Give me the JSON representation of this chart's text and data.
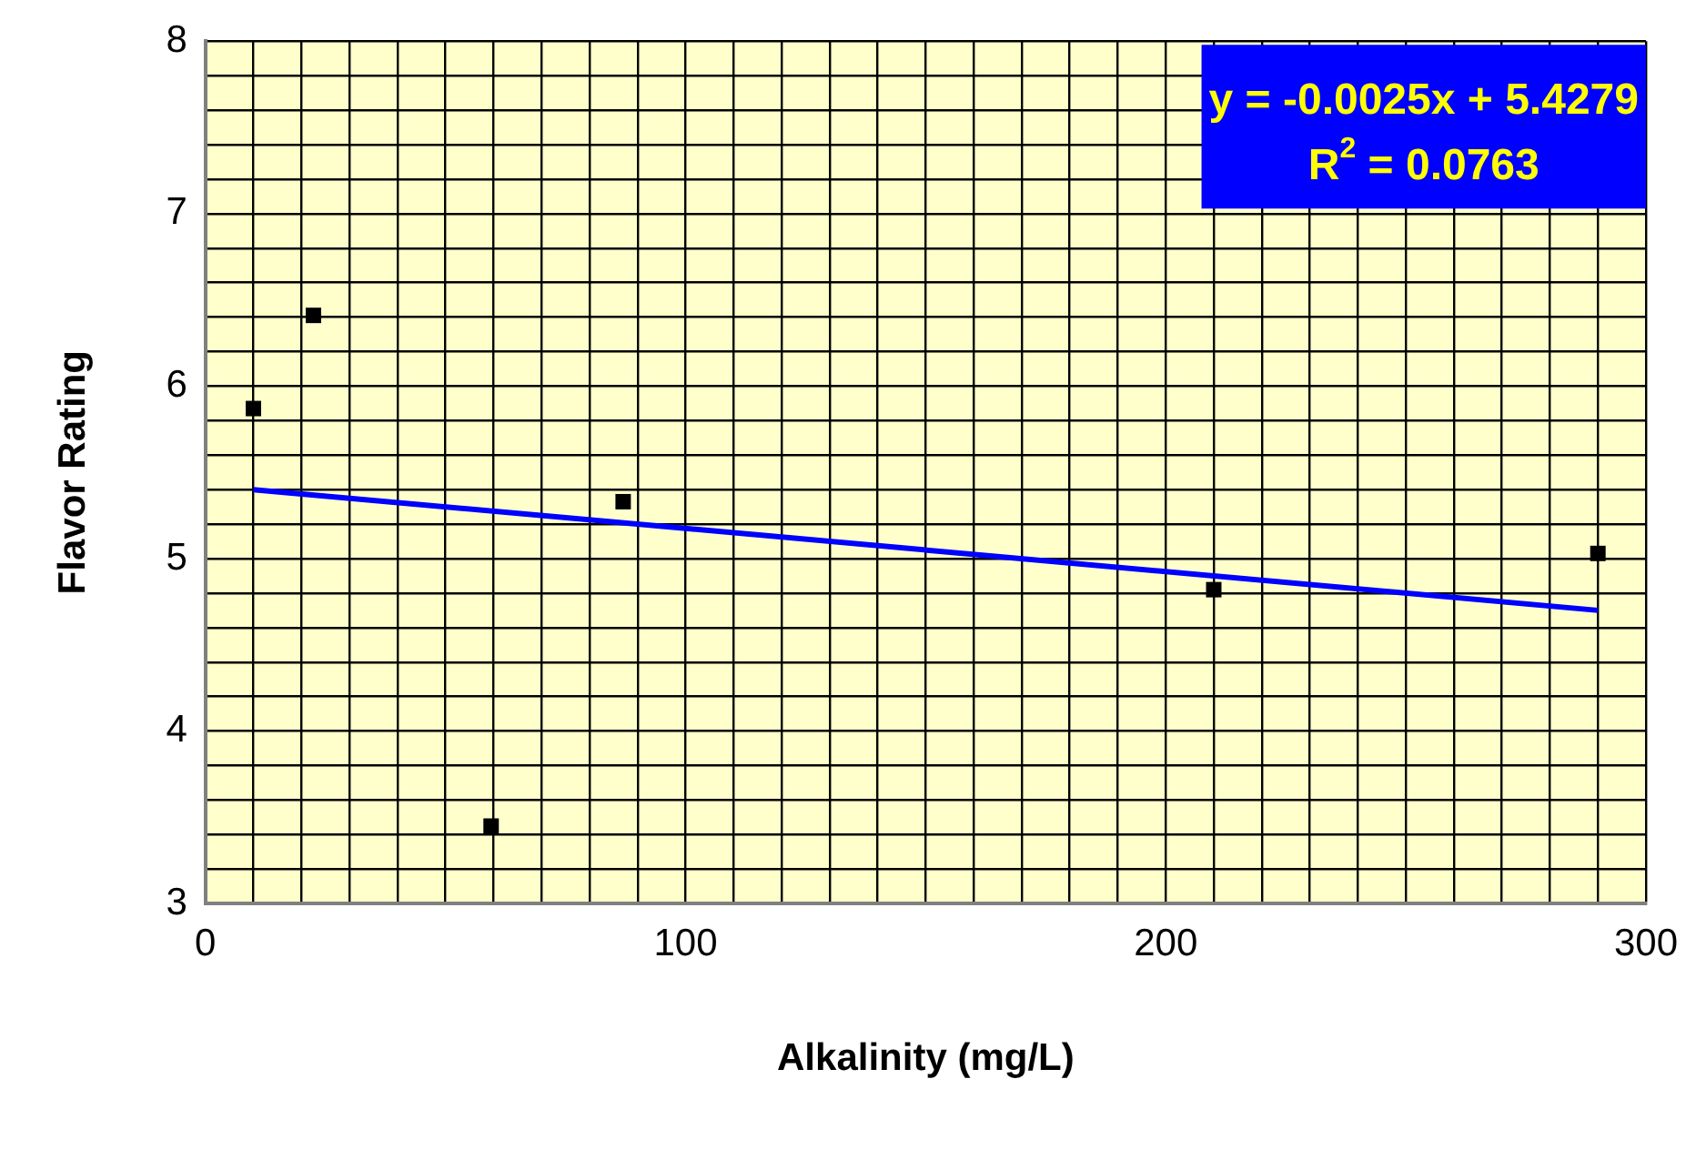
{
  "chart_data": {
    "type": "scatter",
    "xlabel": "Alkalinity (mg/L)",
    "ylabel": "Flavor Rating",
    "series": [
      {
        "type": "scatter",
        "color": "#000000",
        "marker": "square",
        "x": [
          10,
          22.5,
          59.5,
          87,
          210,
          290
        ],
        "values": [
          5.87,
          6.41,
          3.45,
          5.33,
          4.82,
          5.03
        ]
      },
      {
        "type": "line",
        "color": "#0000ff",
        "marker": "none",
        "line_style": "solid",
        "x": [
          10,
          290
        ],
        "values": [
          5.4,
          4.7
        ]
      }
    ],
    "annotations": [
      "y = -0.0025x + 5.4279",
      "R$^{2}$ = 0.0763"
    ],
    "xlim": [
      0,
      300
    ],
    "xticks": [
      0,
      {
        "value": 10,
        "label": null
      },
      {
        "value": 20,
        "label": null
      },
      {
        "value": 30,
        "label": null
      },
      {
        "value": 40,
        "label": null
      },
      {
        "value": 50,
        "label": null
      },
      {
        "value": 60,
        "label": null
      },
      {
        "value": 70,
        "label": null
      },
      {
        "value": 80,
        "label": null
      },
      {
        "value": 90,
        "label": null
      },
      100,
      {
        "value": 110,
        "label": null
      },
      {
        "value": 120,
        "label": null
      },
      {
        "value": 130,
        "label": null
      },
      {
        "value": 140,
        "label": null
      },
      {
        "value": 150,
        "label": null
      },
      {
        "value": 160,
        "label": null
      },
      {
        "value": 170,
        "label": null
      },
      {
        "value": 180,
        "label": null
      },
      {
        "value": 190,
        "label": null
      },
      200,
      {
        "value": 210,
        "label": null
      },
      {
        "value": 220,
        "label": null
      },
      {
        "value": 230,
        "label": null
      },
      {
        "value": 240,
        "label": null
      },
      {
        "value": 250,
        "label": null
      },
      {
        "value": 260,
        "label": null
      },
      {
        "value": 270,
        "label": null
      },
      {
        "value": 280,
        "label": null
      },
      {
        "value": 290,
        "label": null
      },
      300
    ],
    "ylim": [
      3,
      8
    ],
    "yticks": [
      3,
      {
        "value": 3.2,
        "label": null
      },
      {
        "value": 3.4,
        "label": null
      },
      {
        "value": 3.6,
        "label": null
      },
      {
        "value": 3.8,
        "label": null
      },
      4,
      {
        "value": 4.2,
        "label": null
      },
      {
        "value": 4.4,
        "label": null
      },
      {
        "value": 4.6,
        "label": null
      },
      {
        "value": 4.8,
        "label": null
      },
      5,
      {
        "value": 5.2,
        "label": null
      },
      {
        "value": 5.4,
        "label": null
      },
      {
        "value": 5.6,
        "label": null
      },
      {
        "value": 5.8,
        "label": null
      },
      6,
      {
        "value": 6.2,
        "label": null
      },
      {
        "value": 6.4,
        "label": null
      },
      {
        "value": 6.6,
        "label": null
      },
      {
        "value": 6.8,
        "label": null
      },
      7,
      {
        "value": 7.2,
        "label": null
      },
      {
        "value": 7.4,
        "label": null
      },
      {
        "value": 7.6,
        "label": null
      },
      {
        "value": 7.8,
        "label": null
      },
      8
    ],
    "grid": true,
    "legend": false
  }
}
